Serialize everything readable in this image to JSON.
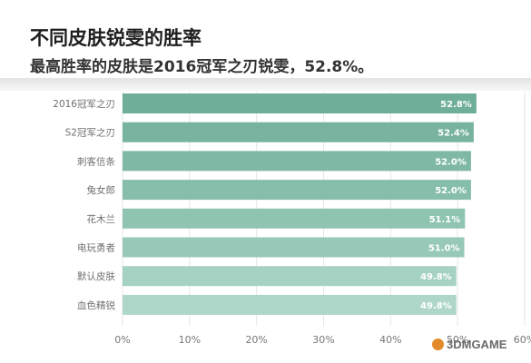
{
  "chart_data": {
    "type": "bar",
    "orientation": "horizontal",
    "title": "不同皮肤锐雯的胜率",
    "subtitle": "最高胜率的皮肤是2016冠军之刃锐雯，52.8%。",
    "categories": [
      "2016冠军之刃",
      "S2冠军之刃",
      "刺客信条",
      "兔女郎",
      "花木兰",
      "电玩勇者",
      "默认皮肤",
      "血色精锐"
    ],
    "values": [
      52.8,
      52.4,
      52.0,
      52.0,
      51.1,
      51.0,
      49.8,
      49.8
    ],
    "value_labels": [
      "52.8%",
      "52.4%",
      "52.0%",
      "52.0%",
      "51.1%",
      "51.0%",
      "49.8%",
      "49.8%"
    ],
    "x_ticks": [
      "0%",
      "10%",
      "20%",
      "30%",
      "40%",
      "50%",
      "60%"
    ],
    "xlim": [
      0,
      60
    ],
    "grid": true,
    "colors": [
      "#6fae98",
      "#77b39e",
      "#7fb9a5",
      "#86beab",
      "#8fc4b1",
      "#98c9b8",
      "#a6d2c3",
      "#aed7c9"
    ]
  },
  "watermark": "3DMGAME"
}
